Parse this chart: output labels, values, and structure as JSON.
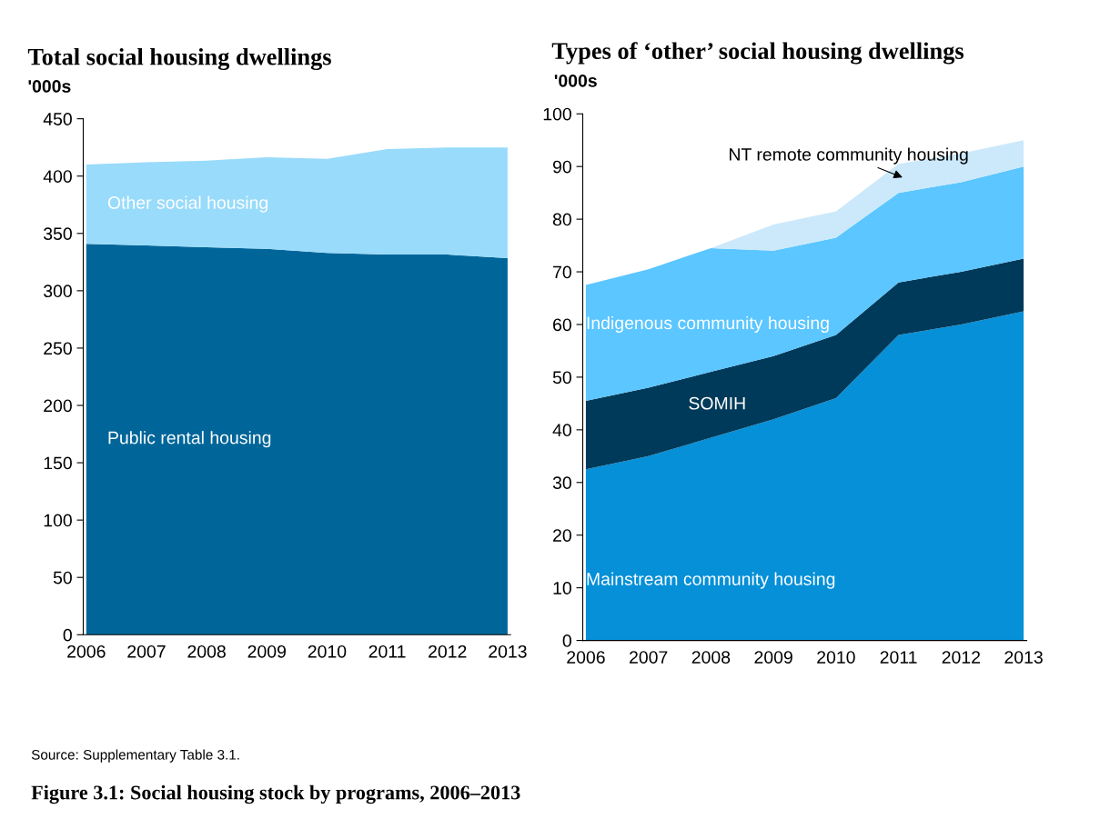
{
  "chart_data": [
    {
      "type": "area",
      "stacked": true,
      "title": "Total social housing dwellings",
      "ylabel": "'000s",
      "categories": [
        "2006",
        "2007",
        "2008",
        "2009",
        "2010",
        "2011",
        "2012",
        "2013"
      ],
      "series": [
        {
          "name": "Public rental housing",
          "color": "#00669a",
          "values": [
            341,
            339.5,
            338,
            336.5,
            333,
            331.5,
            331.5,
            328.5
          ]
        },
        {
          "name": "Other social housing",
          "color": "#99dbfb",
          "values": [
            69,
            72.5,
            75.5,
            80,
            82,
            92,
            93.5,
            96.5
          ]
        }
      ],
      "ylim": [
        0,
        450
      ],
      "yticks": [
        0,
        50,
        100,
        150,
        200,
        250,
        300,
        350,
        400,
        450
      ],
      "grid": false,
      "legend": false,
      "annotations": [
        "Source: Supplementary Table 3.1.",
        "Figure 3.1: Social housing stock by programs, 2006–2013"
      ]
    },
    {
      "type": "area",
      "stacked": true,
      "title": "Types of ‘other’ social housing dwellings",
      "ylabel": "'000s",
      "categories": [
        "2006",
        "2007",
        "2008",
        "2009",
        "2010",
        "2011",
        "2012",
        "2013"
      ],
      "series": [
        {
          "name": "Mainstream community housing",
          "color": "#0590d8",
          "values": [
            32.5,
            35,
            38.5,
            42,
            46,
            58,
            60,
            62.5
          ]
        },
        {
          "name": "SOMIH",
          "color": "#003a5a",
          "values": [
            13,
            13,
            12.5,
            12,
            12,
            10,
            10,
            10
          ]
        },
        {
          "name": "Indigenous community housing",
          "color": "#5bc6ff",
          "values": [
            22,
            22.5,
            23.5,
            20,
            18.5,
            17,
            17,
            17.5
          ]
        },
        {
          "name": "NT remote community housing",
          "color": "#cce9fb",
          "values": [
            0,
            0,
            0,
            5,
            5,
            5.5,
            5.5,
            5
          ]
        }
      ],
      "ylim": [
        0,
        100
      ],
      "yticks": [
        0,
        10,
        20,
        30,
        40,
        50,
        60,
        70,
        80,
        90,
        100
      ],
      "grid": false,
      "legend": false
    }
  ]
}
